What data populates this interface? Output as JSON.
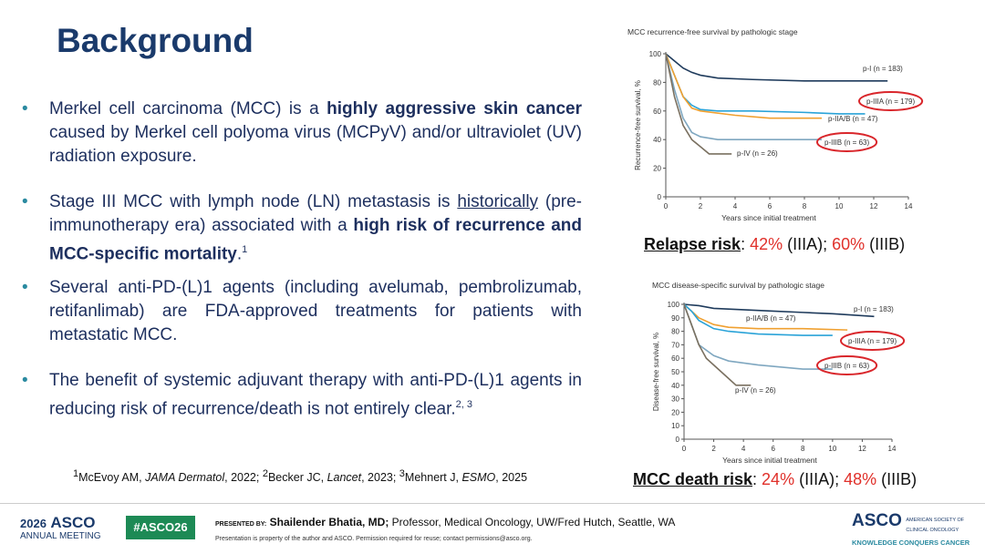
{
  "header": {
    "title": "Background"
  },
  "bullets": [
    [
      {
        "text": "Merkel cell carcinoma (MCC) is a "
      },
      {
        "text": "highly aggressive skin cancer",
        "b": true
      },
      {
        "text": " caused by Merkel cell polyoma virus (MCPyV) and/or ultraviolet (UV) radiation exposure."
      }
    ],
    [
      {
        "text": "Stage III MCC with lymph node (LN) metastasis is "
      },
      {
        "text": "historically",
        "u": true
      },
      {
        "text": " (pre-immunotherapy era) associated with a "
      },
      {
        "text": "high risk of recurrence and MCC-specific mortality",
        "b": true
      },
      {
        "text": "."
      },
      {
        "text": "1",
        "sup": true
      }
    ],
    [
      {
        "text": "Several anti-PD-(L)1 agents (including avelumab, pembrolizumab, retifanlimab) are FDA-approved treatments for patients with metastatic MCC."
      }
    ],
    [
      {
        "text": "The benefit of systemic adjuvant therapy with anti-PD-(L)1 agents in reducing risk of recurrence/death is not entirely clear."
      },
      {
        "text": "2, 3",
        "sup": true
      }
    ]
  ],
  "references": [
    {
      "text": "1",
      "sup": true
    },
    {
      "text": "McEvoy AM, "
    },
    {
      "text": "JAMA Dermatol",
      "i": true
    },
    {
      "text": ", 2022; "
    },
    {
      "text": "2",
      "sup": true
    },
    {
      "text": "Becker JC, "
    },
    {
      "text": "Lancet",
      "i": true
    },
    {
      "text": ", 2023; "
    },
    {
      "text": "3",
      "sup": true
    },
    {
      "text": "Mehnert J, "
    },
    {
      "text": "ESMO",
      "i": true
    },
    {
      "text": ", 2025"
    }
  ],
  "charts": [
    {
      "type": "line",
      "title": "MCC recurrence-free survival by pathologic stage",
      "x_label": "Years since initial treatment",
      "y_label": "Recurrence-free survival, %",
      "xlim": [
        0,
        14
      ],
      "xticks": [
        0,
        2,
        4,
        6,
        8,
        10,
        12,
        14
      ],
      "ylim": [
        0,
        100
      ],
      "yticks": [
        0,
        20,
        40,
        60,
        80,
        100
      ],
      "series": [
        {
          "name": "p-I (n = 183)",
          "color": "#1f3b5c",
          "x": [
            0,
            0.5,
            1,
            1.5,
            2,
            3,
            5,
            8,
            10,
            12.8
          ],
          "values": [
            100,
            95,
            90,
            87,
            85,
            83,
            82,
            81,
            81,
            81
          ]
        },
        {
          "name": "p-IIIA (n = 179)",
          "color": "#2aa3d8",
          "highlight": true,
          "x": [
            0,
            0.5,
            1,
            1.5,
            2,
            3,
            5,
            8,
            10,
            11.5
          ],
          "values": [
            100,
            85,
            70,
            64,
            61,
            60,
            60,
            59,
            58,
            58
          ]
        },
        {
          "name": "p-IIA/B (n = 47)",
          "color": "#f0a030",
          "x": [
            0,
            0.5,
            1,
            1.5,
            2,
            4,
            6,
            9
          ],
          "values": [
            100,
            85,
            70,
            62,
            60,
            57,
            55,
            55
          ]
        },
        {
          "name": "p-IIIB (n = 63)",
          "color": "#7fa7c0",
          "highlight": true,
          "x": [
            0,
            0.5,
            1,
            1.5,
            2,
            3,
            5,
            9
          ],
          "values": [
            100,
            75,
            55,
            45,
            42,
            40,
            40,
            40
          ]
        },
        {
          "name": "p-IV (n = 26)",
          "color": "#7a7060",
          "x": [
            0,
            0.5,
            1,
            1.5,
            2,
            2.5,
            3,
            3.8
          ],
          "values": [
            100,
            70,
            50,
            40,
            35,
            30,
            30,
            30
          ]
        }
      ]
    },
    {
      "type": "line",
      "title": "MCC disease-specific survival by pathologic stage",
      "x_label": "Years since initial treatment",
      "y_label": "Disease-free survival, %",
      "xlim": [
        0,
        14
      ],
      "xticks": [
        0,
        2,
        4,
        6,
        8,
        10,
        12,
        14
      ],
      "ylim": [
        0,
        100
      ],
      "yticks": [
        0,
        10,
        20,
        30,
        40,
        50,
        60,
        70,
        80,
        90,
        100
      ],
      "series": [
        {
          "name": "p-I (n = 183)",
          "color": "#1f3b5c",
          "x": [
            0,
            1,
            2,
            4,
            6,
            8,
            10,
            12.8
          ],
          "values": [
            100,
            99,
            97,
            96,
            95,
            94,
            93,
            91
          ]
        },
        {
          "name": "p-IIA/B (n = 47)",
          "color": "#f0a030",
          "x": [
            0,
            0.5,
            1,
            2,
            3,
            5,
            8,
            11
          ],
          "values": [
            100,
            95,
            90,
            85,
            83,
            82,
            82,
            81
          ]
        },
        {
          "name": "p-IIIA (n = 179)",
          "color": "#2aa3d8",
          "highlight": true,
          "x": [
            0,
            0.5,
            1,
            2,
            3,
            5,
            8,
            10
          ],
          "values": [
            100,
            95,
            88,
            82,
            80,
            78,
            77,
            77
          ]
        },
        {
          "name": "p-IIIB (n = 63)",
          "color": "#7fa7c0",
          "highlight": true,
          "x": [
            0,
            0.5,
            1,
            2,
            3,
            5,
            8,
            10
          ],
          "values": [
            100,
            85,
            70,
            62,
            58,
            55,
            52,
            52
          ]
        },
        {
          "name": "p-IV (n = 26)",
          "color": "#7a7060",
          "x": [
            0,
            0.5,
            1,
            1.5,
            2,
            3,
            3.5,
            4.5
          ],
          "values": [
            100,
            85,
            70,
            60,
            55,
            45,
            40,
            40
          ]
        }
      ]
    }
  ],
  "captions": [
    [
      {
        "text": "Relapse risk",
        "b": true,
        "u": true
      },
      {
        "text": ": "
      },
      {
        "text": "42%",
        "color": "#e0302a"
      },
      {
        "text": " (IIIA); "
      },
      {
        "text": "60%",
        "color": "#e0302a"
      },
      {
        "text": " (IIIB)"
      }
    ],
    [
      {
        "text": "MCC death risk",
        "b": true,
        "u": true
      },
      {
        "text": ": "
      },
      {
        "text": "24%",
        "color": "#e0302a"
      },
      {
        "text": " (IIIA); "
      },
      {
        "text": "48%",
        "color": "#e0302a"
      },
      {
        "text": " (IIIB)"
      }
    ]
  ],
  "footer": {
    "meeting_year": "2026",
    "meeting_brand": "ASCO",
    "meeting_name": "ANNUAL MEETING",
    "hashtag": "#ASCO26",
    "presented_by": "PRESENTED BY:",
    "presenter": "Shailender Bhatia, MD;",
    "affiliation": " Professor, Medical Oncology, UW/Fred Hutch, Seattle, WA",
    "notice": "Presentation is property of the author and ASCO. Permission required for reuse; contact permissions@asco.org.",
    "org_brand": "ASCO",
    "org_name": "AMERICAN SOCIETY OF CLINICAL ONCOLOGY",
    "org_tagline": "KNOWLEDGE CONQUERS CANCER"
  }
}
